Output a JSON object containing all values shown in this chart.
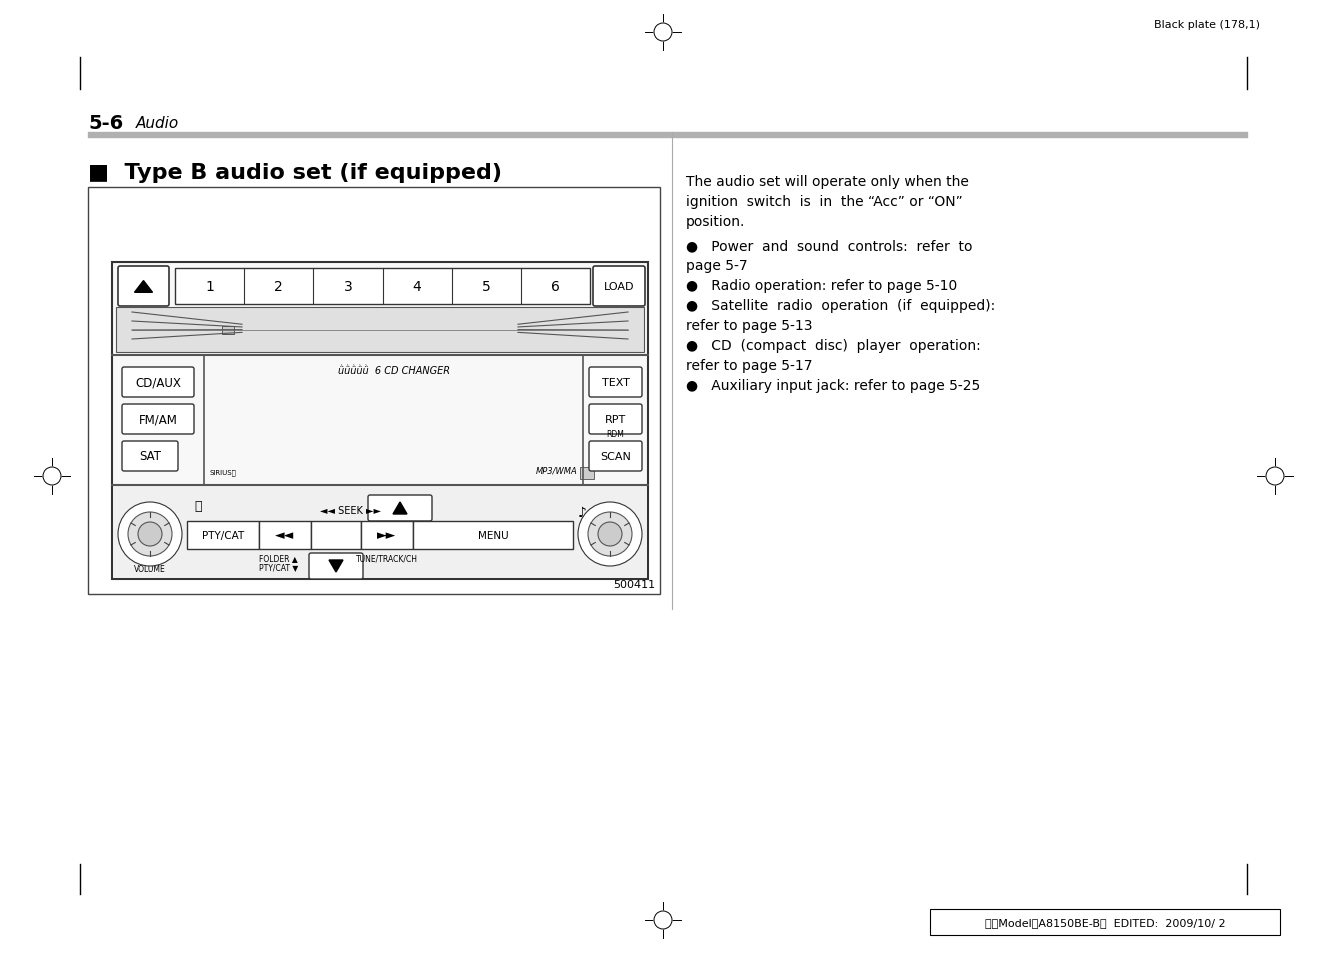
{
  "page_bg": "#ffffff",
  "header_text": "Black plate (178,1)",
  "section_num": "5-6",
  "section_italic": "Audio",
  "heading": "■  Type B audio set (if equipped)",
  "right_para": "The audio set will operate only when the\nignition  switch  is  in  the “Acc” or “ON”\nposition.",
  "bullet1a": "●   Power  and  sound  controls:  refer  to",
  "bullet1b": "page 5-7",
  "bullet2": "●   Radio operation: refer to page 5-10",
  "bullet3a": "●   Satellite  radio  operation  (if  equipped):",
  "bullet3b": "refer to page 5-13",
  "bullet4a": "●   CD  (compact  disc)  player  operation:",
  "bullet4b": "refer to page 5-17",
  "bullet5": "●   Auxiliary input jack: refer to page 5-25",
  "footer_text": "北米Model｢A8150BE-B｣  EDITED:  2009/10/ 2",
  "image_code": "500411",
  "preset_labels": [
    "1",
    "2",
    "3",
    "4",
    "5",
    "6"
  ],
  "left_btns": [
    "CD/AUX",
    "FM/AM",
    "SAT"
  ],
  "right_btns": [
    "TEXT",
    "RPT",
    "SCAN"
  ],
  "rdm_label": "RDM"
}
